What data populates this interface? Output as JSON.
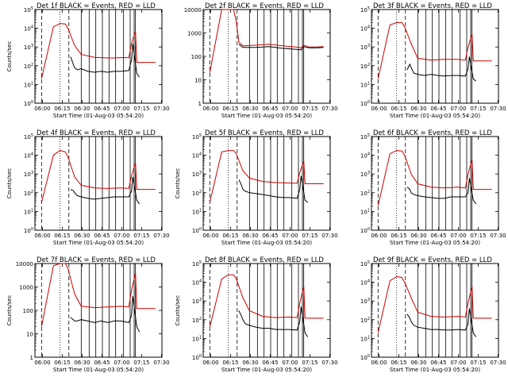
{
  "colors": {
    "events": "#000000",
    "lld": "#cc0000",
    "background": "#ffffff"
  },
  "x_tick_labels": [
    "06:00",
    "06:15",
    "06:30",
    "06:45",
    "07:00",
    "07:15",
    "07:30"
  ],
  "chart_data": [
    {
      "type": "line",
      "title": "Det 1f BLACK = Events, RED = LLD",
      "ylabel": "Counts/sec",
      "xlabel": "Start Time (01-Aug-03 05:54:20)",
      "y_scale": "log",
      "ylim": [
        1,
        100000
      ],
      "y_tick_labels": [
        "10^0",
        "10^1",
        "10^2",
        "10^3",
        "10^4",
        "10^5"
      ],
      "series": [
        {
          "name": "LLD",
          "x": [
            300,
            840,
            1140,
            1380,
            1500,
            1800,
            2100,
            2700,
            3300,
            3600,
            3900,
            4260,
            4380,
            4560,
            4620,
            4800,
            5100,
            5460
          ],
          "y": [
            20,
            12000,
            18000,
            17000,
            10000,
            1200,
            400,
            280,
            260,
            260,
            270,
            270,
            1500,
            7000,
            150,
            150,
            150,
            150
          ]
        },
        {
          "name": "Events",
          "x": [
            1620,
            1740,
            1800,
            1920,
            2100,
            2400,
            2700,
            3000,
            3300,
            3600,
            3900,
            4260,
            4380,
            4440,
            4620,
            4680,
            4740
          ],
          "y": [
            300,
            120,
            80,
            60,
            70,
            50,
            45,
            50,
            45,
            50,
            50,
            55,
            200,
            1500,
            40,
            30,
            25
          ]
        }
      ]
    },
    {
      "type": "line",
      "title": "Det 2f BLACK = Events, RED = LLD",
      "ylabel": "",
      "xlabel": "Start Time (01-Aug-03 05:54:20)",
      "y_scale": "log",
      "ylim": [
        1,
        10000
      ],
      "y_tick_labels": [
        "1",
        "10",
        "100",
        "1000",
        "10000"
      ],
      "series": [
        {
          "name": "LLD",
          "x": [
            300,
            840,
            1140,
            1380,
            1500,
            1620,
            1800,
            2400,
            3000,
            3600,
            4200,
            4440,
            4560,
            4800,
            5160,
            5460
          ],
          "y": [
            20,
            10000,
            10000,
            10000,
            3000,
            400,
            280,
            300,
            330,
            280,
            250,
            230,
            300,
            250,
            250,
            260
          ]
        },
        {
          "name": "Events",
          "x": [
            1620,
            1800,
            2400,
            3000,
            3600,
            4200,
            4440,
            4560,
            4800,
            5160,
            5460
          ],
          "y": [
            330,
            240,
            240,
            260,
            220,
            200,
            190,
            260,
            230,
            230,
            240
          ]
        }
      ]
    },
    {
      "type": "line",
      "title": "Det 3f BLACK = Events, RED = LLD",
      "ylabel": "",
      "xlabel": "Start Time (01-Aug-03 05:54:20)",
      "y_scale": "log",
      "ylim": [
        1,
        100000
      ],
      "y_tick_labels": [
        "10^0",
        "10^1",
        "10^2",
        "10^3",
        "10^4",
        "10^5"
      ],
      "series": [
        {
          "name": "LLD",
          "x": [
            300,
            840,
            1140,
            1380,
            1500,
            1800,
            2100,
            2700,
            3300,
            3900,
            4260,
            4380,
            4560,
            4620,
            4800,
            5100,
            5460
          ],
          "y": [
            20,
            15000,
            20000,
            20000,
            12000,
            1500,
            250,
            200,
            220,
            220,
            200,
            1000,
            5000,
            180,
            180,
            180,
            180
          ]
        },
        {
          "name": "Events",
          "x": [
            1620,
            1740,
            1800,
            1920,
            2100,
            2400,
            2700,
            3000,
            3300,
            3600,
            3900,
            4260,
            4380,
            4440,
            4620,
            4740
          ],
          "y": [
            60,
            120,
            80,
            40,
            35,
            30,
            35,
            30,
            28,
            30,
            30,
            28,
            70,
            300,
            20,
            15
          ]
        }
      ]
    },
    {
      "type": "line",
      "title": "Det 4f BLACK = Events, RED = LLD",
      "ylabel": "Counts/sec",
      "xlabel": "Start Time (01-Aug-03 05:54:20)",
      "y_scale": "log",
      "ylim": [
        1,
        100000
      ],
      "y_tick_labels": [
        "10^0",
        "10^1",
        "10^2",
        "10^3",
        "10^4",
        "10^5"
      ],
      "series": [
        {
          "name": "LLD",
          "x": [
            300,
            840,
            1140,
            1380,
            1500,
            1800,
            2100,
            2700,
            3300,
            3900,
            4260,
            4380,
            4560,
            4620,
            4800,
            5100,
            5460
          ],
          "y": [
            30,
            10000,
            18000,
            15000,
            8000,
            700,
            250,
            180,
            170,
            180,
            170,
            800,
            4000,
            150,
            150,
            150,
            150
          ]
        },
        {
          "name": "Events",
          "x": [
            1620,
            1740,
            1800,
            1920,
            2100,
            2400,
            2700,
            3000,
            3300,
            3600,
            3900,
            4260,
            4380,
            4440,
            4620,
            4740
          ],
          "y": [
            150,
            130,
            100,
            70,
            60,
            50,
            45,
            50,
            55,
            60,
            60,
            60,
            120,
            700,
            40,
            25
          ]
        }
      ]
    },
    {
      "type": "line",
      "title": "Det 5f BLACK = Events, RED = LLD",
      "ylabel": "Counts/sec",
      "xlabel": "Start Time (01-Aug-03 05:54:20)",
      "y_scale": "log",
      "ylim": [
        1,
        100000
      ],
      "y_tick_labels": [
        "10^0",
        "10^1",
        "10^2",
        "10^3",
        "10^4",
        "10^5"
      ],
      "series": [
        {
          "name": "LLD",
          "x": [
            300,
            840,
            1140,
            1380,
            1500,
            1800,
            2100,
            2700,
            3300,
            3900,
            4260,
            4380,
            4560,
            4620,
            4800,
            5100,
            5460
          ],
          "y": [
            30,
            15000,
            18000,
            18000,
            12000,
            1500,
            600,
            400,
            350,
            330,
            320,
            1200,
            5000,
            300,
            300,
            300,
            300
          ]
        },
        {
          "name": "Events",
          "x": [
            1620,
            1740,
            1800,
            1920,
            2100,
            2400,
            2700,
            3000,
            3300,
            3600,
            3900,
            4260,
            4380,
            4440,
            4620,
            4740
          ],
          "y": [
            500,
            250,
            150,
            120,
            100,
            90,
            80,
            70,
            60,
            55,
            55,
            50,
            150,
            800,
            40,
            30
          ]
        }
      ]
    },
    {
      "type": "line",
      "title": "Det 6f BLACK = Events, RED = LLD",
      "ylabel": "",
      "xlabel": "Start Time (01-Aug-03 05:54:20)",
      "y_scale": "log",
      "ylim": [
        1,
        100000
      ],
      "y_tick_labels": [
        "10^0",
        "10^1",
        "10^2",
        "10^3",
        "10^4",
        "10^5"
      ],
      "series": [
        {
          "name": "LLD",
          "x": [
            300,
            840,
            1140,
            1380,
            1500,
            1800,
            2100,
            2700,
            3300,
            3900,
            4260,
            4380,
            4560,
            4620,
            4800,
            5100,
            5460
          ],
          "y": [
            20,
            12000,
            18000,
            17000,
            10000,
            1000,
            300,
            200,
            180,
            200,
            180,
            1000,
            6000,
            150,
            150,
            150,
            150
          ]
        },
        {
          "name": "Events",
          "x": [
            1620,
            1740,
            1800,
            1920,
            2100,
            2400,
            2700,
            3000,
            3300,
            3600,
            3900,
            4260,
            4380,
            4440,
            4620,
            4740
          ],
          "y": [
            200,
            150,
            100,
            80,
            70,
            60,
            55,
            50,
            50,
            60,
            60,
            60,
            100,
            600,
            40,
            25
          ]
        }
      ]
    },
    {
      "type": "line",
      "title": "Det 7f BLACK = Events, RED = LLD",
      "ylabel": "Counts/sec",
      "xlabel": "Start Time (01-Aug-03 05:54:20)",
      "y_scale": "log",
      "ylim": [
        1,
        10000
      ],
      "y_tick_labels": [
        "1",
        "10",
        "100",
        "1000",
        "10000"
      ],
      "series": [
        {
          "name": "LLD",
          "x": [
            300,
            840,
            1140,
            1380,
            1500,
            1800,
            2100,
            2700,
            3300,
            3900,
            4260,
            4380,
            4560,
            4620,
            4800,
            5100,
            5460
          ],
          "y": [
            20,
            8000,
            10000,
            10000,
            6000,
            500,
            150,
            130,
            140,
            150,
            140,
            700,
            4000,
            120,
            120,
            120,
            120
          ]
        },
        {
          "name": "Events",
          "x": [
            1620,
            1740,
            1800,
            1920,
            2100,
            2400,
            2700,
            3000,
            3300,
            3600,
            3900,
            4260,
            4380,
            4440,
            4620,
            4740
          ],
          "y": [
            50,
            40,
            35,
            35,
            40,
            35,
            30,
            35,
            30,
            35,
            35,
            30,
            60,
            400,
            20,
            12
          ]
        }
      ]
    },
    {
      "type": "line",
      "title": "Det 8f BLACK = Events, RED = LLD",
      "ylabel": "Counts/sec",
      "xlabel": "Start Time (01-Aug-03 05:54:20)",
      "y_scale": "log",
      "ylim": [
        1,
        100000
      ],
      "y_tick_labels": [
        "10^0",
        "10^1",
        "10^2",
        "10^3",
        "10^4",
        "10^5"
      ],
      "series": [
        {
          "name": "LLD",
          "x": [
            300,
            840,
            1140,
            1380,
            1500,
            1800,
            2100,
            2700,
            3300,
            3900,
            4260,
            4380,
            4560,
            4620,
            4800,
            5100,
            5460
          ],
          "y": [
            40,
            15000,
            25000,
            25000,
            15000,
            1500,
            300,
            150,
            130,
            140,
            130,
            800,
            6000,
            120,
            120,
            120,
            120
          ]
        },
        {
          "name": "Events",
          "x": [
            1620,
            1740,
            1800,
            1920,
            2100,
            2400,
            2700,
            3000,
            3300,
            3600,
            3900,
            4260,
            4380,
            4440,
            4620,
            4740
          ],
          "y": [
            300,
            150,
            100,
            60,
            50,
            40,
            35,
            35,
            30,
            30,
            30,
            28,
            80,
            500,
            20,
            12
          ]
        }
      ]
    },
    {
      "type": "line",
      "title": "Det 9f BLACK = Events, RED = LLD",
      "ylabel": "",
      "xlabel": "Start Time (01-Aug-03 05:54:20)",
      "y_scale": "log",
      "ylim": [
        1,
        100000
      ],
      "y_tick_labels": [
        "10^0",
        "10^1",
        "10^2",
        "10^3",
        "10^4",
        "10^5"
      ],
      "series": [
        {
          "name": "LLD",
          "x": [
            300,
            840,
            1140,
            1380,
            1500,
            1800,
            2100,
            2700,
            3300,
            3900,
            4260,
            4380,
            4560,
            4620,
            4800,
            5100,
            5460
          ],
          "y": [
            20,
            12000,
            20000,
            18000,
            10000,
            1500,
            250,
            150,
            140,
            150,
            140,
            800,
            6000,
            120,
            120,
            120,
            120
          ]
        },
        {
          "name": "Events",
          "x": [
            1620,
            1740,
            1800,
            1920,
            2100,
            2400,
            2700,
            3000,
            3300,
            3600,
            3900,
            4260,
            4380,
            4440,
            4620,
            4740
          ],
          "y": [
            200,
            120,
            80,
            50,
            40,
            35,
            30,
            30,
            28,
            28,
            30,
            28,
            60,
            400,
            20,
            12
          ]
        }
      ]
    }
  ]
}
